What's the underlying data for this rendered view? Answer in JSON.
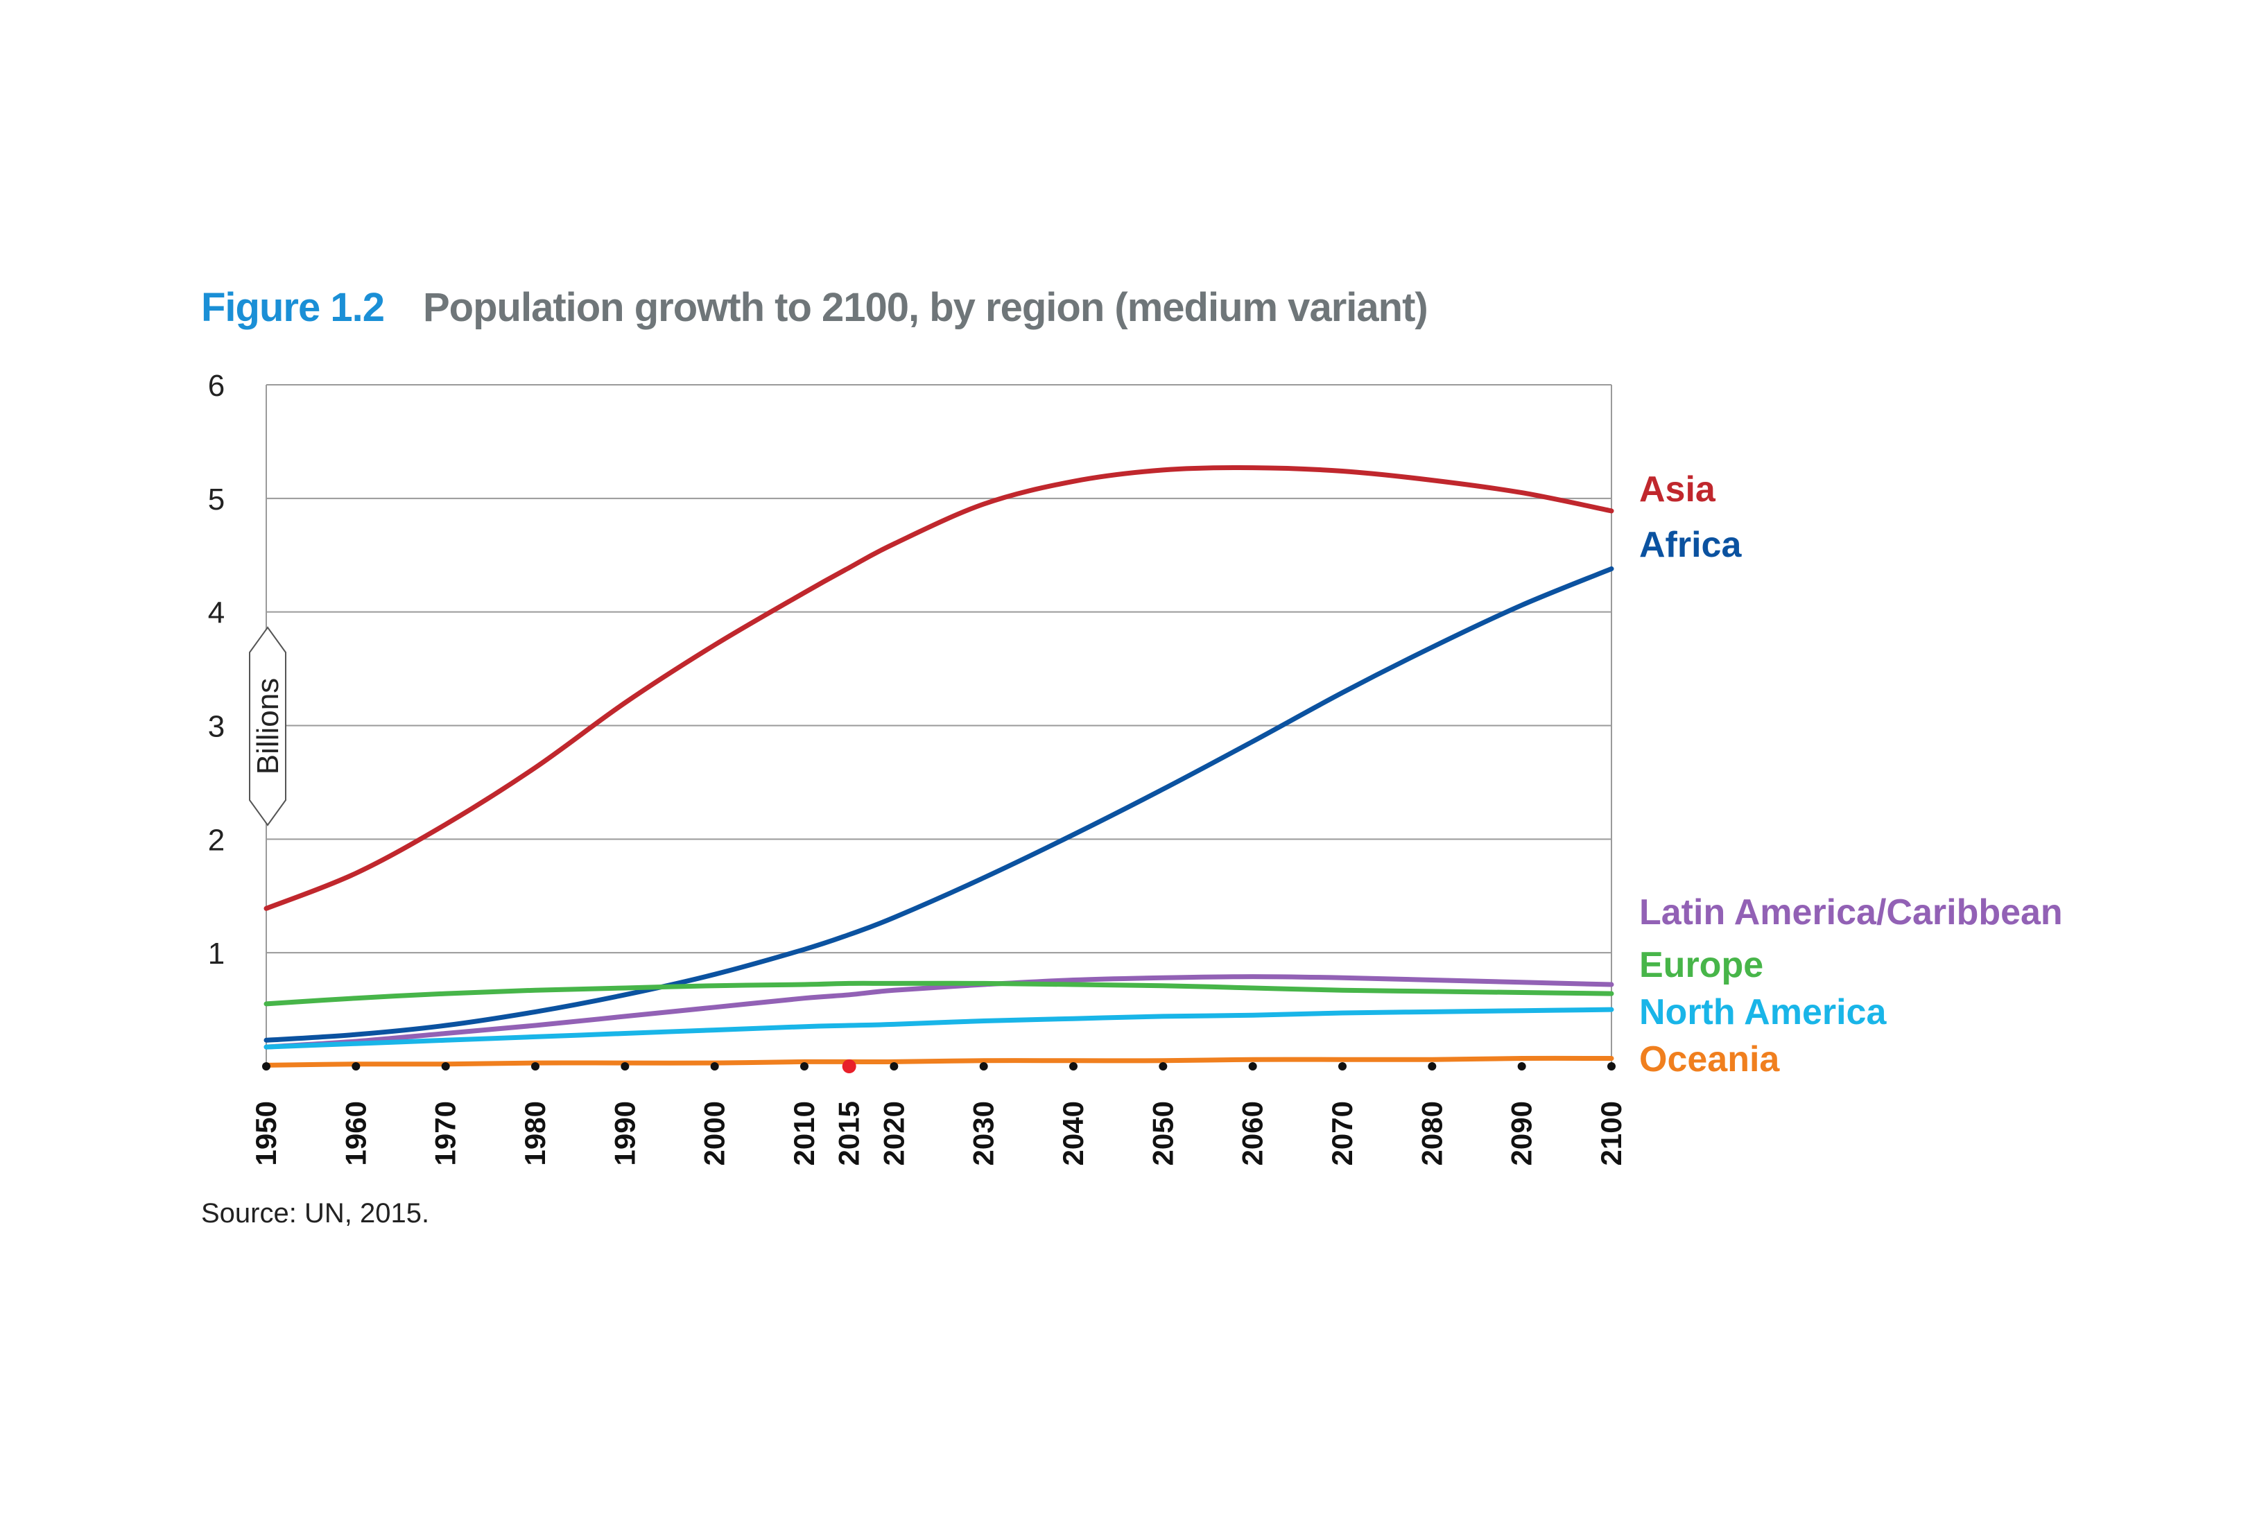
{
  "figure": {
    "number": "Figure 1.2",
    "title": "Population growth to 2100, by region (medium variant)",
    "source": "Source: UN, 2015."
  },
  "chart_data": {
    "type": "line",
    "title": "Population growth to 2100, by region (medium variant)",
    "ylabel": "Billions",
    "xlabel": "",
    "xlim": [
      1950,
      2100
    ],
    "ylim": [
      0,
      6
    ],
    "yticks": [
      1,
      2,
      3,
      4,
      5,
      6
    ],
    "xticks": [
      1950,
      1960,
      1970,
      1980,
      1990,
      2000,
      2010,
      2015,
      2020,
      2030,
      2040,
      2050,
      2060,
      2070,
      2080,
      2090,
      2100
    ],
    "highlight_x": 2015,
    "grid": true,
    "legend": "right, labels at line ends",
    "x": [
      1950,
      1960,
      1970,
      1980,
      1990,
      2000,
      2010,
      2015,
      2020,
      2030,
      2040,
      2050,
      2060,
      2070,
      2080,
      2090,
      2100
    ],
    "series": [
      {
        "name": "Asia",
        "color": "#c0272d",
        "values": [
          1.39,
          1.7,
          2.13,
          2.63,
          3.2,
          3.71,
          4.17,
          4.39,
          4.6,
          4.95,
          5.15,
          5.25,
          5.27,
          5.24,
          5.16,
          5.05,
          4.89
        ]
      },
      {
        "name": "Africa",
        "color": "#0b52a0",
        "values": [
          0.23,
          0.28,
          0.36,
          0.48,
          0.63,
          0.81,
          1.03,
          1.16,
          1.31,
          1.66,
          2.04,
          2.44,
          2.86,
          3.29,
          3.69,
          4.06,
          4.38
        ]
      },
      {
        "name": "Latin America/Caribbean",
        "color": "#9261b5",
        "values": [
          0.17,
          0.22,
          0.29,
          0.36,
          0.44,
          0.52,
          0.6,
          0.63,
          0.67,
          0.72,
          0.76,
          0.78,
          0.79,
          0.78,
          0.76,
          0.74,
          0.72
        ]
      },
      {
        "name": "Europe",
        "color": "#47b549",
        "values": [
          0.55,
          0.6,
          0.64,
          0.67,
          0.69,
          0.71,
          0.72,
          0.73,
          0.73,
          0.73,
          0.72,
          0.71,
          0.69,
          0.67,
          0.66,
          0.65,
          0.64
        ]
      },
      {
        "name": "North America",
        "color": "#19b5e8",
        "values": [
          0.17,
          0.2,
          0.23,
          0.26,
          0.29,
          0.32,
          0.35,
          0.36,
          0.37,
          0.4,
          0.42,
          0.44,
          0.45,
          0.47,
          0.48,
          0.49,
          0.5
        ]
      },
      {
        "name": "Oceania",
        "color": "#f07f1e",
        "values": [
          0.01,
          0.02,
          0.02,
          0.03,
          0.03,
          0.03,
          0.04,
          0.04,
          0.04,
          0.05,
          0.05,
          0.05,
          0.06,
          0.06,
          0.06,
          0.07,
          0.07
        ]
      }
    ]
  }
}
